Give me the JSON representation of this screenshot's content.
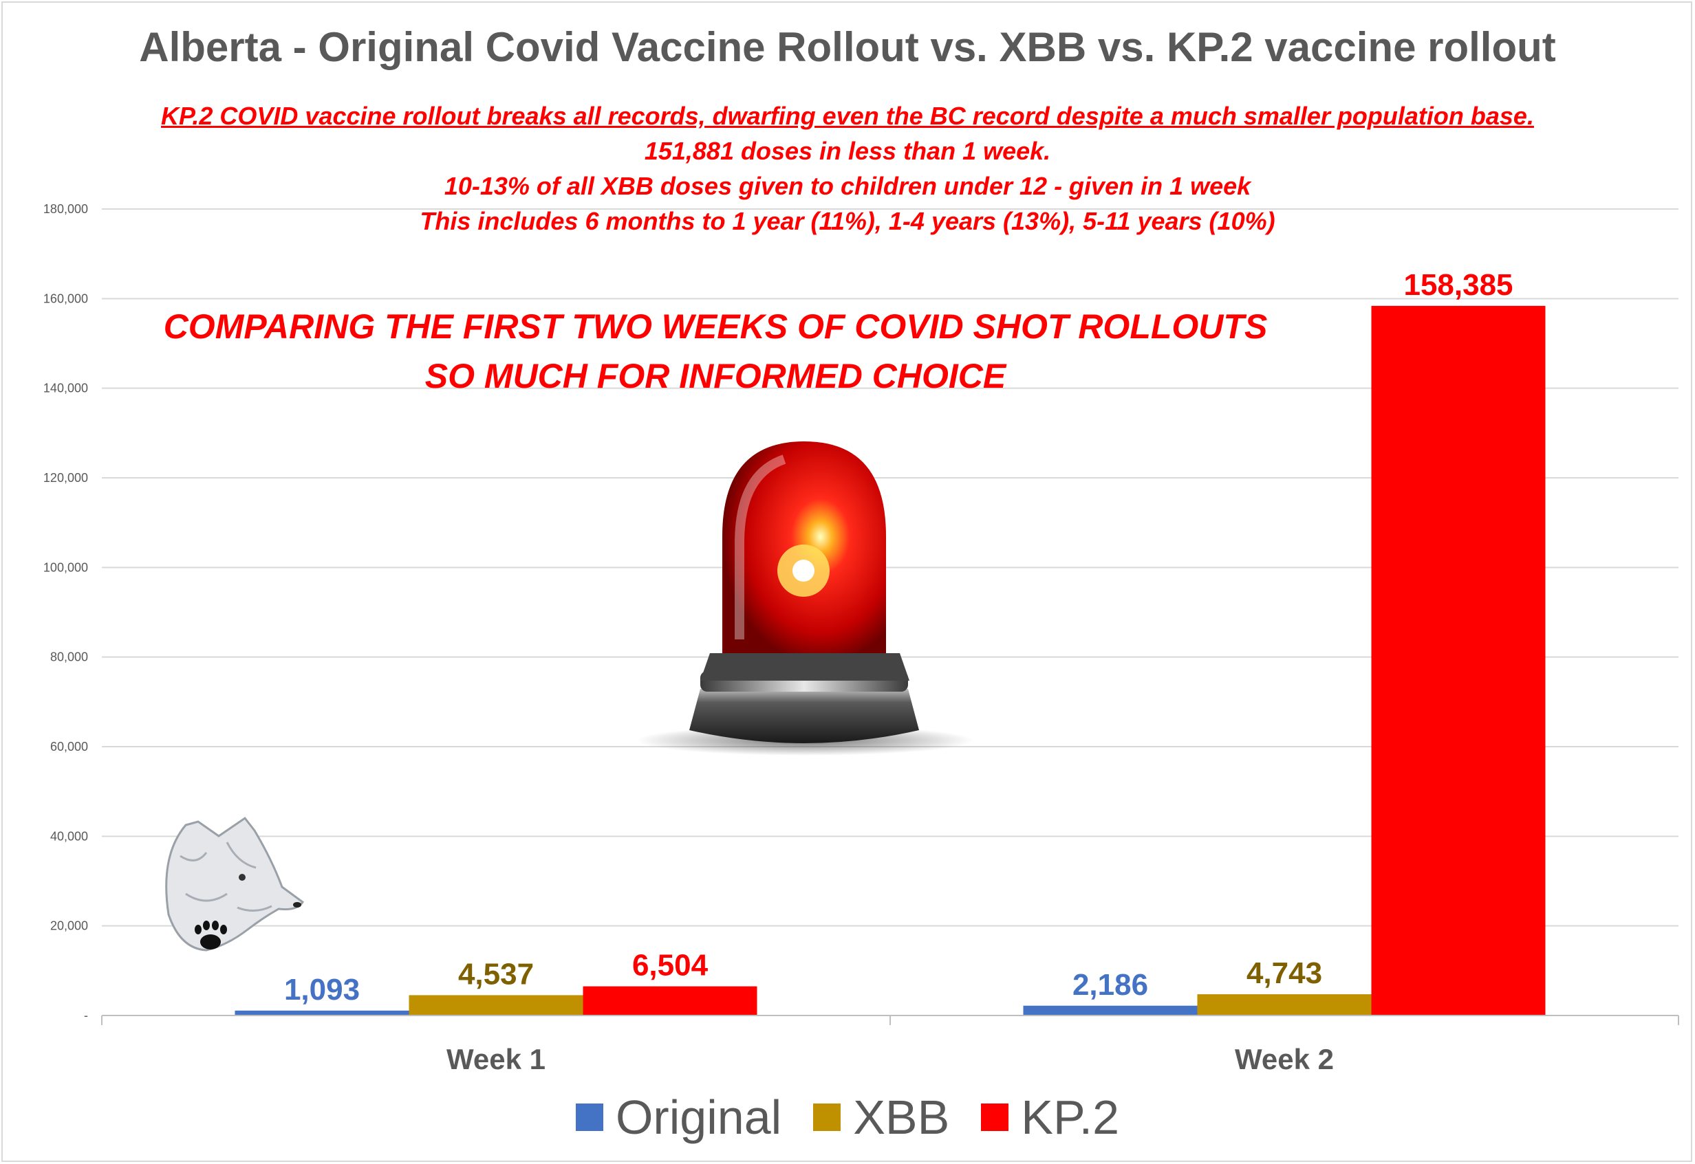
{
  "chart_data": {
    "type": "bar",
    "title": "Alberta - Original Covid Vaccine Rollout vs. XBB vs. KP.2 vaccine rollout",
    "subtitle_lines": [
      "KP.2 COVID vaccine rollout breaks all records, dwarfing even the BC record despite a much smaller population base.",
      "151,881 doses in less than 1 week.",
      "10-13% of all XBB doses given to children under 12 - given in 1 week",
      "This includes 6 months to 1 year (11%), 1-4 years (13%), 5-11 years (10%)"
    ],
    "annotation_lines": [
      "COMPARING THE FIRST TWO WEEKS OF COVID SHOT ROLLOUTS",
      "SO MUCH FOR INFORMED CHOICE"
    ],
    "categories": [
      "Week 1",
      "Week 2"
    ],
    "series": [
      {
        "name": "Original",
        "color": "#4472c4",
        "values": [
          1093,
          2186
        ],
        "labels": [
          "1,093",
          "2,186"
        ]
      },
      {
        "name": "XBB",
        "color": "#bf9000",
        "values": [
          4537,
          4743
        ],
        "labels": [
          "4,537",
          "4,743"
        ]
      },
      {
        "name": "KP.2",
        "color": "#ff0000",
        "values": [
          6504,
          158385
        ],
        "labels": [
          "6,504",
          "158,385"
        ]
      }
    ],
    "label_colors": [
      "#4472c4",
      "#7f6000",
      "#ff0000"
    ],
    "ylim": [
      0,
      180000
    ],
    "yticks": [
      {
        "value": 0,
        "label": "-"
      },
      {
        "value": 20000,
        "label": "20,000"
      },
      {
        "value": 40000,
        "label": "40,000"
      },
      {
        "value": 60000,
        "label": "60,000"
      },
      {
        "value": 80000,
        "label": "80,000"
      },
      {
        "value": 100000,
        "label": "100,000"
      },
      {
        "value": 120000,
        "label": "120,000"
      },
      {
        "value": 140000,
        "label": "140,000"
      },
      {
        "value": 160000,
        "label": "160,000"
      },
      {
        "value": 180000,
        "label": "180,000"
      }
    ],
    "grid": true,
    "legend": "bottom",
    "xlabel": "",
    "ylabel": ""
  },
  "images": {
    "alarm": "red-siren-light-icon",
    "logo": "wolf-head-paw-logo"
  }
}
